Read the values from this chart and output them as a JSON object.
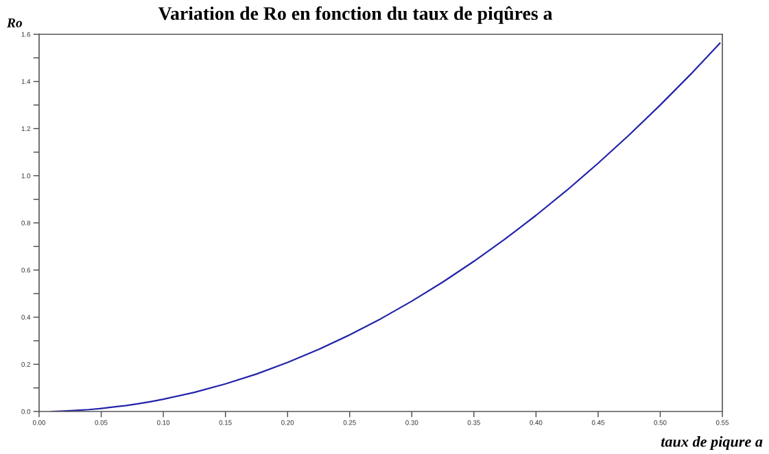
{
  "chart_data": {
    "type": "line",
    "title": "Variation de Ro en fonction du taux de piqûres a",
    "xlabel": "taux de piqure a",
    "ylabel": "Ro",
    "x": [
      0.01,
      0.02,
      0.03,
      0.04,
      0.05,
      0.06,
      0.07,
      0.08,
      0.09,
      0.1,
      0.125,
      0.15,
      0.175,
      0.2,
      0.225,
      0.25,
      0.275,
      0.3,
      0.325,
      0.35,
      0.375,
      0.4,
      0.425,
      0.45,
      0.475,
      0.5,
      0.525,
      0.548
    ],
    "series": [
      {
        "color": "#2222aa",
        "values": [
          0.0,
          0.002,
          0.005,
          0.008,
          0.013,
          0.019,
          0.025,
          0.033,
          0.042,
          0.052,
          0.081,
          0.117,
          0.159,
          0.208,
          0.263,
          0.325,
          0.393,
          0.468,
          0.549,
          0.637,
          0.731,
          0.832,
          0.939,
          1.053,
          1.173,
          1.3,
          1.433,
          1.562
        ]
      }
    ],
    "xlim": [
      0,
      0.55
    ],
    "ylim": [
      0,
      1.6
    ],
    "xticks": [
      {
        "value": 0,
        "label": "0.00"
      },
      {
        "value": 0.05,
        "label": "0.05"
      },
      {
        "value": 0.1,
        "label": "0.10"
      },
      {
        "value": 0.15,
        "label": "0.15"
      },
      {
        "value": 0.2,
        "label": "0.20"
      },
      {
        "value": 0.25,
        "label": "0.25"
      },
      {
        "value": 0.3,
        "label": "0.30"
      },
      {
        "value": 0.35,
        "label": "0.35"
      },
      {
        "value": 0.4,
        "label": "0.40"
      },
      {
        "value": 0.45,
        "label": "0.45"
      },
      {
        "value": 0.5,
        "label": "0.50"
      },
      {
        "value": 0.55,
        "label": "0.55"
      }
    ],
    "yticks": [
      {
        "value": 0,
        "label": "0.0"
      },
      {
        "value": 0.1,
        "label": null
      },
      {
        "value": 0.2,
        "label": "0.2"
      },
      {
        "value": 0.3,
        "label": null
      },
      {
        "value": 0.4,
        "label": "0.4"
      },
      {
        "value": 0.5,
        "label": null
      },
      {
        "value": 0.6,
        "label": "0.6"
      },
      {
        "value": 0.7,
        "label": null
      },
      {
        "value": 0.8,
        "label": "0.8"
      },
      {
        "value": 0.9,
        "label": null
      },
      {
        "value": 1.0,
        "label": "1.0"
      },
      {
        "value": 1.1,
        "label": null
      },
      {
        "value": 1.2,
        "label": "1.2"
      },
      {
        "value": 1.3,
        "label": null
      },
      {
        "value": 1.4,
        "label": "1.4"
      },
      {
        "value": 1.5,
        "label": null
      },
      {
        "value": 1.6,
        "label": "1.6"
      }
    ],
    "line_style": "solid"
  }
}
